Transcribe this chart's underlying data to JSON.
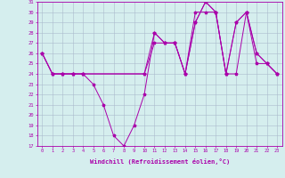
{
  "xlabel": "Windchill (Refroidissement éolien,°C)",
  "xlim": [
    -0.5,
    23.5
  ],
  "ylim": [
    17,
    31
  ],
  "yticks": [
    17,
    18,
    19,
    20,
    21,
    22,
    23,
    24,
    25,
    26,
    27,
    28,
    29,
    30,
    31
  ],
  "xticks": [
    0,
    1,
    2,
    3,
    4,
    5,
    6,
    7,
    8,
    9,
    10,
    11,
    12,
    13,
    14,
    15,
    16,
    17,
    18,
    19,
    20,
    21,
    22,
    23
  ],
  "background_color": "#d5eeee",
  "line_color": "#aa00aa",
  "grid_color": "#aabbcc",
  "lines": [
    {
      "x": [
        0,
        1,
        2,
        3,
        4,
        5,
        6,
        7,
        8,
        9,
        10,
        11,
        12,
        13,
        14,
        15,
        16,
        17,
        18,
        19,
        20,
        21,
        22,
        23
      ],
      "y": [
        26,
        24,
        24,
        24,
        24,
        23,
        21,
        18,
        17,
        19,
        22,
        28,
        27,
        27,
        24,
        29,
        31,
        30,
        24,
        29,
        30,
        26,
        25,
        24
      ]
    },
    {
      "x": [
        0,
        1,
        2,
        3,
        4,
        10,
        11,
        12,
        13,
        14,
        15,
        16,
        17,
        18,
        19,
        20,
        21,
        22,
        23
      ],
      "y": [
        26,
        24,
        24,
        24,
        24,
        24,
        27,
        27,
        27,
        24,
        30,
        30,
        30,
        24,
        24,
        30,
        25,
        25,
        24
      ]
    },
    {
      "x": [
        0,
        1,
        2,
        3,
        4,
        10,
        11,
        12,
        13,
        14,
        15,
        16,
        17,
        18,
        19,
        20,
        21,
        22,
        23
      ],
      "y": [
        26,
        24,
        24,
        24,
        24,
        24,
        28,
        27,
        27,
        24,
        29,
        31,
        30,
        24,
        29,
        30,
        26,
        25,
        24
      ]
    }
  ]
}
